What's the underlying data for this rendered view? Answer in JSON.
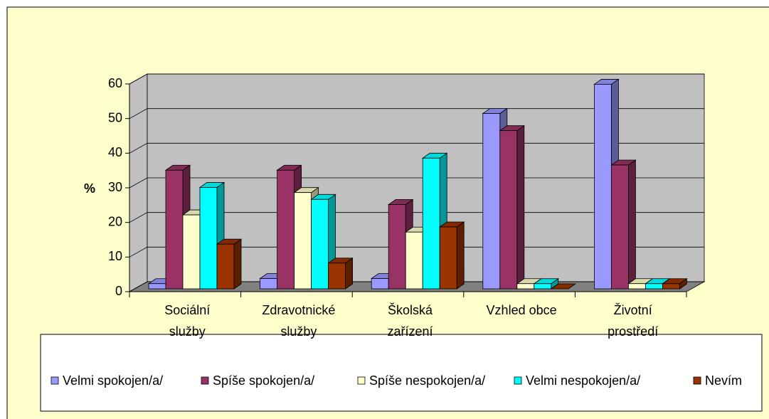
{
  "chart_data": {
    "type": "bar3d",
    "y_label": "%",
    "categories": [
      [
        "Sociální",
        "služby"
      ],
      [
        "Zdravotnické",
        "služby"
      ],
      [
        "Školská",
        "zařízení"
      ],
      [
        "Vzhled obce"
      ],
      [
        "Životní",
        "prostředí"
      ]
    ],
    "series": [
      {
        "name": "Velmi spokojen/a/",
        "color": "#9999ff",
        "values": [
          1.5,
          3,
          3,
          51,
          59.5
        ]
      },
      {
        "name": "Spíše spokojen/a/",
        "color": "#993366",
        "values": [
          34.5,
          34.5,
          24.5,
          46,
          36
        ]
      },
      {
        "name": "Spíše nespokojen/a/",
        "color": "#ffffcc",
        "values": [
          21.5,
          28,
          16.5,
          1.5,
          1.5
        ]
      },
      {
        "name": "Velmi nespokojen/a/",
        "color": "#00ffff",
        "values": [
          29.5,
          26,
          38,
          1.5,
          1.5
        ]
      },
      {
        "name": "Nevím",
        "color": "#993300",
        "values": [
          13,
          7.5,
          18,
          0,
          1.5
        ]
      }
    ],
    "ylim": [
      0,
      60
    ],
    "yticks": [
      0,
      10,
      20,
      30,
      40,
      50,
      60
    ],
    "grid": true,
    "legend": "bottom"
  }
}
